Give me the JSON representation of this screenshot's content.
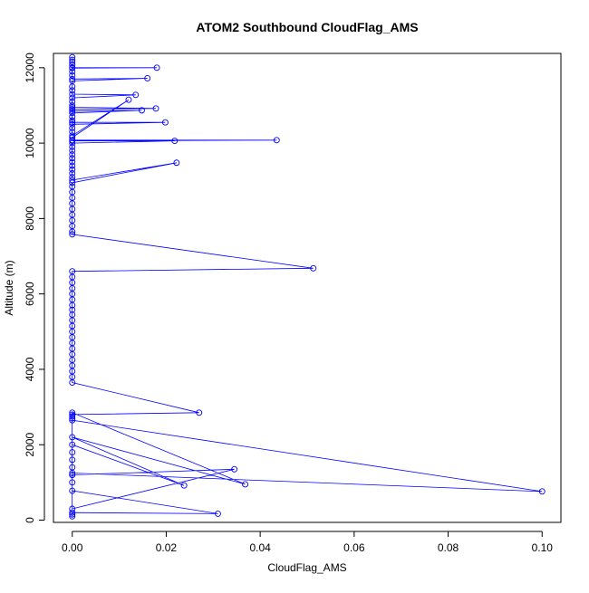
{
  "chart_data": {
    "type": "line",
    "title": "ATOM2 Southbound CloudFlag_AMS",
    "xlabel": "CloudFlag_AMS",
    "ylabel": "Altitude (m)",
    "xlim": [
      -0.004,
      0.104
    ],
    "ylim": [
      -60,
      12380
    ],
    "xticks": [
      0.0,
      0.02,
      0.04,
      0.06,
      0.08,
      0.1
    ],
    "xtick_labels": [
      "0.00",
      "0.02",
      "0.04",
      "0.06",
      "0.08",
      "0.10"
    ],
    "yticks": [
      0,
      2000,
      4000,
      6000,
      8000,
      10000,
      12000
    ],
    "ytick_labels": [
      "0",
      "2000",
      "4000",
      "6000",
      "8000",
      "10000",
      "12000"
    ],
    "grid": false,
    "series_color": "#0000ff",
    "series": [
      {
        "name": "CloudFlag_AMS",
        "marker": "open-circle",
        "points": [
          {
            "x": 0,
            "y": 12280
          },
          {
            "x": 0,
            "y": 12210
          },
          {
            "x": 0,
            "y": 12150
          },
          {
            "x": 0,
            "y": 12080
          },
          {
            "x": 0,
            "y": 12000
          },
          {
            "x": 0.018,
            "y": 12000
          },
          {
            "x": 0,
            "y": 11990
          },
          {
            "x": 0,
            "y": 11900
          },
          {
            "x": 0,
            "y": 11800
          },
          {
            "x": 0,
            "y": 11700
          },
          {
            "x": 0.016,
            "y": 11720
          },
          {
            "x": 0,
            "y": 11650
          },
          {
            "x": 0,
            "y": 11500
          },
          {
            "x": 0,
            "y": 11400
          },
          {
            "x": 0,
            "y": 11300
          },
          {
            "x": 0.0135,
            "y": 11280
          },
          {
            "x": 0,
            "y": 11200
          },
          {
            "x": 0,
            "y": 11100
          },
          {
            "x": 0,
            "y": 11000
          },
          {
            "x": 0,
            "y": 10950
          },
          {
            "x": 0.0178,
            "y": 10920
          },
          {
            "x": 0,
            "y": 10900
          },
          {
            "x": 0,
            "y": 10850
          },
          {
            "x": 0.0148,
            "y": 10870
          },
          {
            "x": 0,
            "y": 10800
          },
          {
            "x": 0,
            "y": 10700
          },
          {
            "x": 0,
            "y": 10600
          },
          {
            "x": 0,
            "y": 10550
          },
          {
            "x": 0.0198,
            "y": 10550
          },
          {
            "x": 0,
            "y": 10500
          },
          {
            "x": 0,
            "y": 10400
          },
          {
            "x": 0,
            "y": 10300
          },
          {
            "x": 0,
            "y": 10200
          },
          {
            "x": 0.012,
            "y": 11150
          },
          {
            "x": 0,
            "y": 10150
          },
          {
            "x": 0,
            "y": 10080
          },
          {
            "x": 0.0435,
            "y": 10080
          },
          {
            "x": 0,
            "y": 10060
          },
          {
            "x": 0.0218,
            "y": 10060
          },
          {
            "x": 0,
            "y": 10000
          },
          {
            "x": 0,
            "y": 9900
          },
          {
            "x": 0,
            "y": 9800
          },
          {
            "x": 0,
            "y": 9700
          },
          {
            "x": 0,
            "y": 9600
          },
          {
            "x": 0,
            "y": 9500
          },
          {
            "x": 0,
            "y": 9400
          },
          {
            "x": 0,
            "y": 9300
          },
          {
            "x": 0,
            "y": 9200
          },
          {
            "x": 0,
            "y": 9100
          },
          {
            "x": 0,
            "y": 9020
          },
          {
            "x": 0.0222,
            "y": 9480
          },
          {
            "x": 0,
            "y": 8950
          },
          {
            "x": 0,
            "y": 8850
          },
          {
            "x": 0,
            "y": 8700
          },
          {
            "x": 0,
            "y": 8550
          },
          {
            "x": 0,
            "y": 8400
          },
          {
            "x": 0,
            "y": 8250
          },
          {
            "x": 0,
            "y": 8100
          },
          {
            "x": 0,
            "y": 7950
          },
          {
            "x": 0,
            "y": 7800
          },
          {
            "x": 0,
            "y": 7650
          },
          {
            "x": 0,
            "y": 7580
          },
          {
            "x": 0.0513,
            "y": 6680
          },
          {
            "x": 0,
            "y": 6600
          },
          {
            "x": 0,
            "y": 6450
          },
          {
            "x": 0,
            "y": 6300
          },
          {
            "x": 0,
            "y": 6150
          },
          {
            "x": 0,
            "y": 6000
          },
          {
            "x": 0,
            "y": 5850
          },
          {
            "x": 0,
            "y": 5700
          },
          {
            "x": 0,
            "y": 5580
          },
          {
            "x": 0,
            "y": 5450
          },
          {
            "x": 0,
            "y": 5300
          },
          {
            "x": 0,
            "y": 5150
          },
          {
            "x": 0,
            "y": 5000
          },
          {
            "x": 0,
            "y": 4850
          },
          {
            "x": 0,
            "y": 4700
          },
          {
            "x": 0,
            "y": 4550
          },
          {
            "x": 0,
            "y": 4400
          },
          {
            "x": 0,
            "y": 4250
          },
          {
            "x": 0,
            "y": 4100
          },
          {
            "x": 0,
            "y": 3950
          },
          {
            "x": 0,
            "y": 3800
          },
          {
            "x": 0,
            "y": 3650
          },
          {
            "x": 0.027,
            "y": 2850
          },
          {
            "x": 0,
            "y": 2800
          },
          {
            "x": 0,
            "y": 2750
          },
          {
            "x": 0,
            "y": 2700
          },
          {
            "x": 0,
            "y": 2650
          },
          {
            "x": 0.1,
            "y": 760
          },
          {
            "x": 0,
            "y": 1250
          },
          {
            "x": 0,
            "y": 1200
          },
          {
            "x": 0.0345,
            "y": 1350
          },
          {
            "x": 0,
            "y": 300
          },
          {
            "x": 0,
            "y": 2850
          },
          {
            "x": 0.0368,
            "y": 950
          },
          {
            "x": 0,
            "y": 2200
          },
          {
            "x": 0.0238,
            "y": 920
          },
          {
            "x": 0,
            "y": 2000
          },
          {
            "x": 0,
            "y": 1800
          },
          {
            "x": 0,
            "y": 1600
          },
          {
            "x": 0,
            "y": 1400
          },
          {
            "x": 0,
            "y": 1200
          },
          {
            "x": 0,
            "y": 1000
          },
          {
            "x": 0,
            "y": 780
          },
          {
            "x": 0.031,
            "y": 170
          },
          {
            "x": 0,
            "y": 200
          },
          {
            "x": 0,
            "y": 150
          },
          {
            "x": 0,
            "y": 100
          }
        ]
      }
    ]
  }
}
